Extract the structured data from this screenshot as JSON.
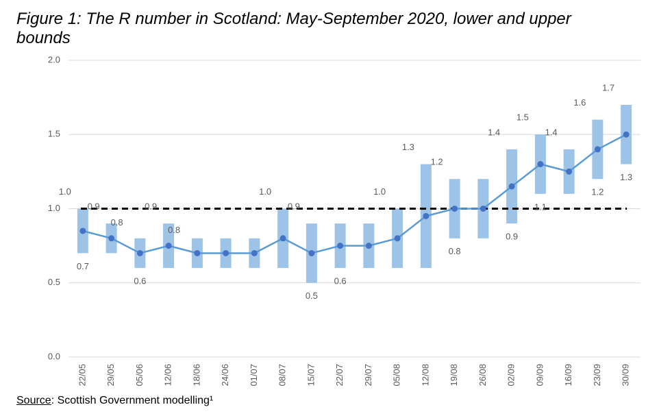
{
  "chart_data": {
    "type": "line",
    "title": "Figure 1: The R number in Scotland: May-September 2020, lower and upper bounds",
    "source_label": "Source",
    "source_text": ": Scottish Government modelling¹",
    "categories": [
      "22/05",
      "29/05",
      "05/06",
      "12/06",
      "18/06",
      "24/06",
      "01/07",
      "08/07",
      "15/07",
      "22/07",
      "29/07",
      "05/08",
      "12/08",
      "19/08",
      "26/08",
      "02/09",
      "09/09",
      "16/09",
      "23/09",
      "30/09"
    ],
    "values": [
      0.85,
      0.8,
      0.7,
      0.75,
      0.7,
      0.7,
      0.7,
      0.8,
      0.7,
      0.75,
      0.75,
      0.8,
      0.95,
      1.0,
      1.0,
      1.15,
      1.3,
      1.25,
      1.4,
      1.5
    ],
    "value_labels": [
      null,
      "0.8",
      null,
      "0.8",
      null,
      null,
      null,
      null,
      null,
      null,
      null,
      null,
      null,
      null,
      null,
      null,
      null,
      null,
      null,
      null
    ],
    "color": "#5b9bd5",
    "marker_color": "#4472c4",
    "bounds": {
      "color": "#9dc3e6",
      "lower": {
        "values": [
          0.7,
          0.7,
          0.6,
          0.6,
          0.6,
          0.6,
          0.6,
          0.6,
          0.5,
          0.6,
          0.6,
          0.6,
          0.6,
          0.8,
          0.8,
          0.9,
          1.1,
          1.1,
          1.2,
          1.3
        ],
        "value_labels": [
          "0.7",
          null,
          "0.6",
          null,
          null,
          null,
          null,
          null,
          "0.5",
          "0.6",
          null,
          null,
          null,
          "0.8",
          null,
          "0.9",
          "1.1",
          null,
          "1.2",
          "1.3"
        ]
      },
      "upper": {
        "values": [
          1.0,
          0.9,
          0.8,
          0.9,
          0.8,
          0.8,
          0.8,
          1.0,
          0.9,
          0.9,
          0.9,
          1.0,
          1.3,
          1.2,
          1.2,
          1.4,
          1.5,
          1.4,
          1.6,
          1.7
        ],
        "value_labels": [
          "1.0",
          "0.9",
          null,
          "0.9",
          null,
          null,
          null,
          "1.0",
          "0.9",
          null,
          null,
          "1.0",
          "1.3",
          "1.2",
          null,
          "1.4",
          "1.5",
          "1.4",
          "1.6",
          "1.7"
        ]
      }
    },
    "threshold": 1,
    "ylim": [
      0,
      2
    ],
    "yticks": [
      {
        "value": 0,
        "label": "0.0"
      },
      0.5,
      {
        "value": 1,
        "label": "1.0"
      },
      1.5,
      {
        "value": 2,
        "label": "2.0"
      }
    ],
    "grid": true
  }
}
